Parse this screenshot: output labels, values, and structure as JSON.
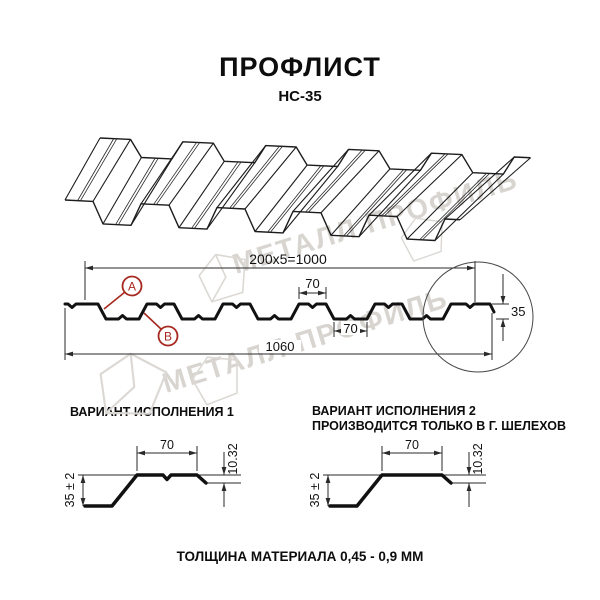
{
  "header": {
    "title": "ПРОФЛИСТ",
    "subtitle": "НС-35"
  },
  "watermark": {
    "text": "МЕТАЛЛ ПРОФИЛЬ",
    "color": "#d8d5d1"
  },
  "colors": {
    "background": "#ffffff",
    "line": "#1c1c1c",
    "accent_red": "#a6291f",
    "watermark": "#d8d5d1"
  },
  "cross_section": {
    "dims": {
      "overall_top": "200x5=1000",
      "crest_width": "70",
      "valley_width": "70",
      "overall_bottom": "1060",
      "height": "35"
    },
    "callouts": {
      "a": "А",
      "b": "В"
    }
  },
  "variants": {
    "variant1": {
      "label": "ВАРИАНТ ИСПОЛНЕНИЯ 1",
      "dims": {
        "crest_width": "70",
        "height": "35 ± 2",
        "lip": "10.32"
      }
    },
    "variant2": {
      "label_line1": "ВАРИАНТ ИСПОЛНЕНИЯ 2",
      "label_line2": "ПРОИЗВОДИТСЯ ТОЛЬКО В Г. ШЕЛЕХОВ",
      "dims": {
        "crest_width": "70",
        "height": "35 ± 2",
        "lip": "10.32"
      }
    }
  },
  "footer": {
    "text": "ТОЛЩИНА МАТЕРИАЛА 0,45 - 0,9 ММ"
  }
}
